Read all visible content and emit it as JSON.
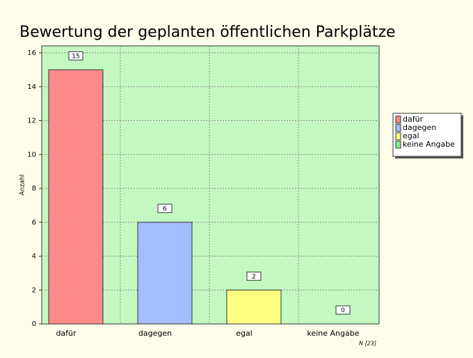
{
  "chart_data": {
    "type": "bar",
    "title": "Bewertung der geplanten öffentlichen Parkplätze",
    "y_label": "Anzahl",
    "note": "N [23]",
    "categories": [
      "dafür",
      "dagegen",
      "egal",
      "keine Angabe"
    ],
    "values": [
      15,
      6,
      2,
      0
    ],
    "colors": [
      "#ff8a8a",
      "#a4bdfc",
      "#ffff80",
      "#80f080"
    ],
    "ylim": [
      0,
      16
    ],
    "yticks": [
      0,
      2,
      4,
      6,
      8,
      10,
      12,
      14,
      16
    ],
    "grid": true,
    "legend": "right"
  }
}
